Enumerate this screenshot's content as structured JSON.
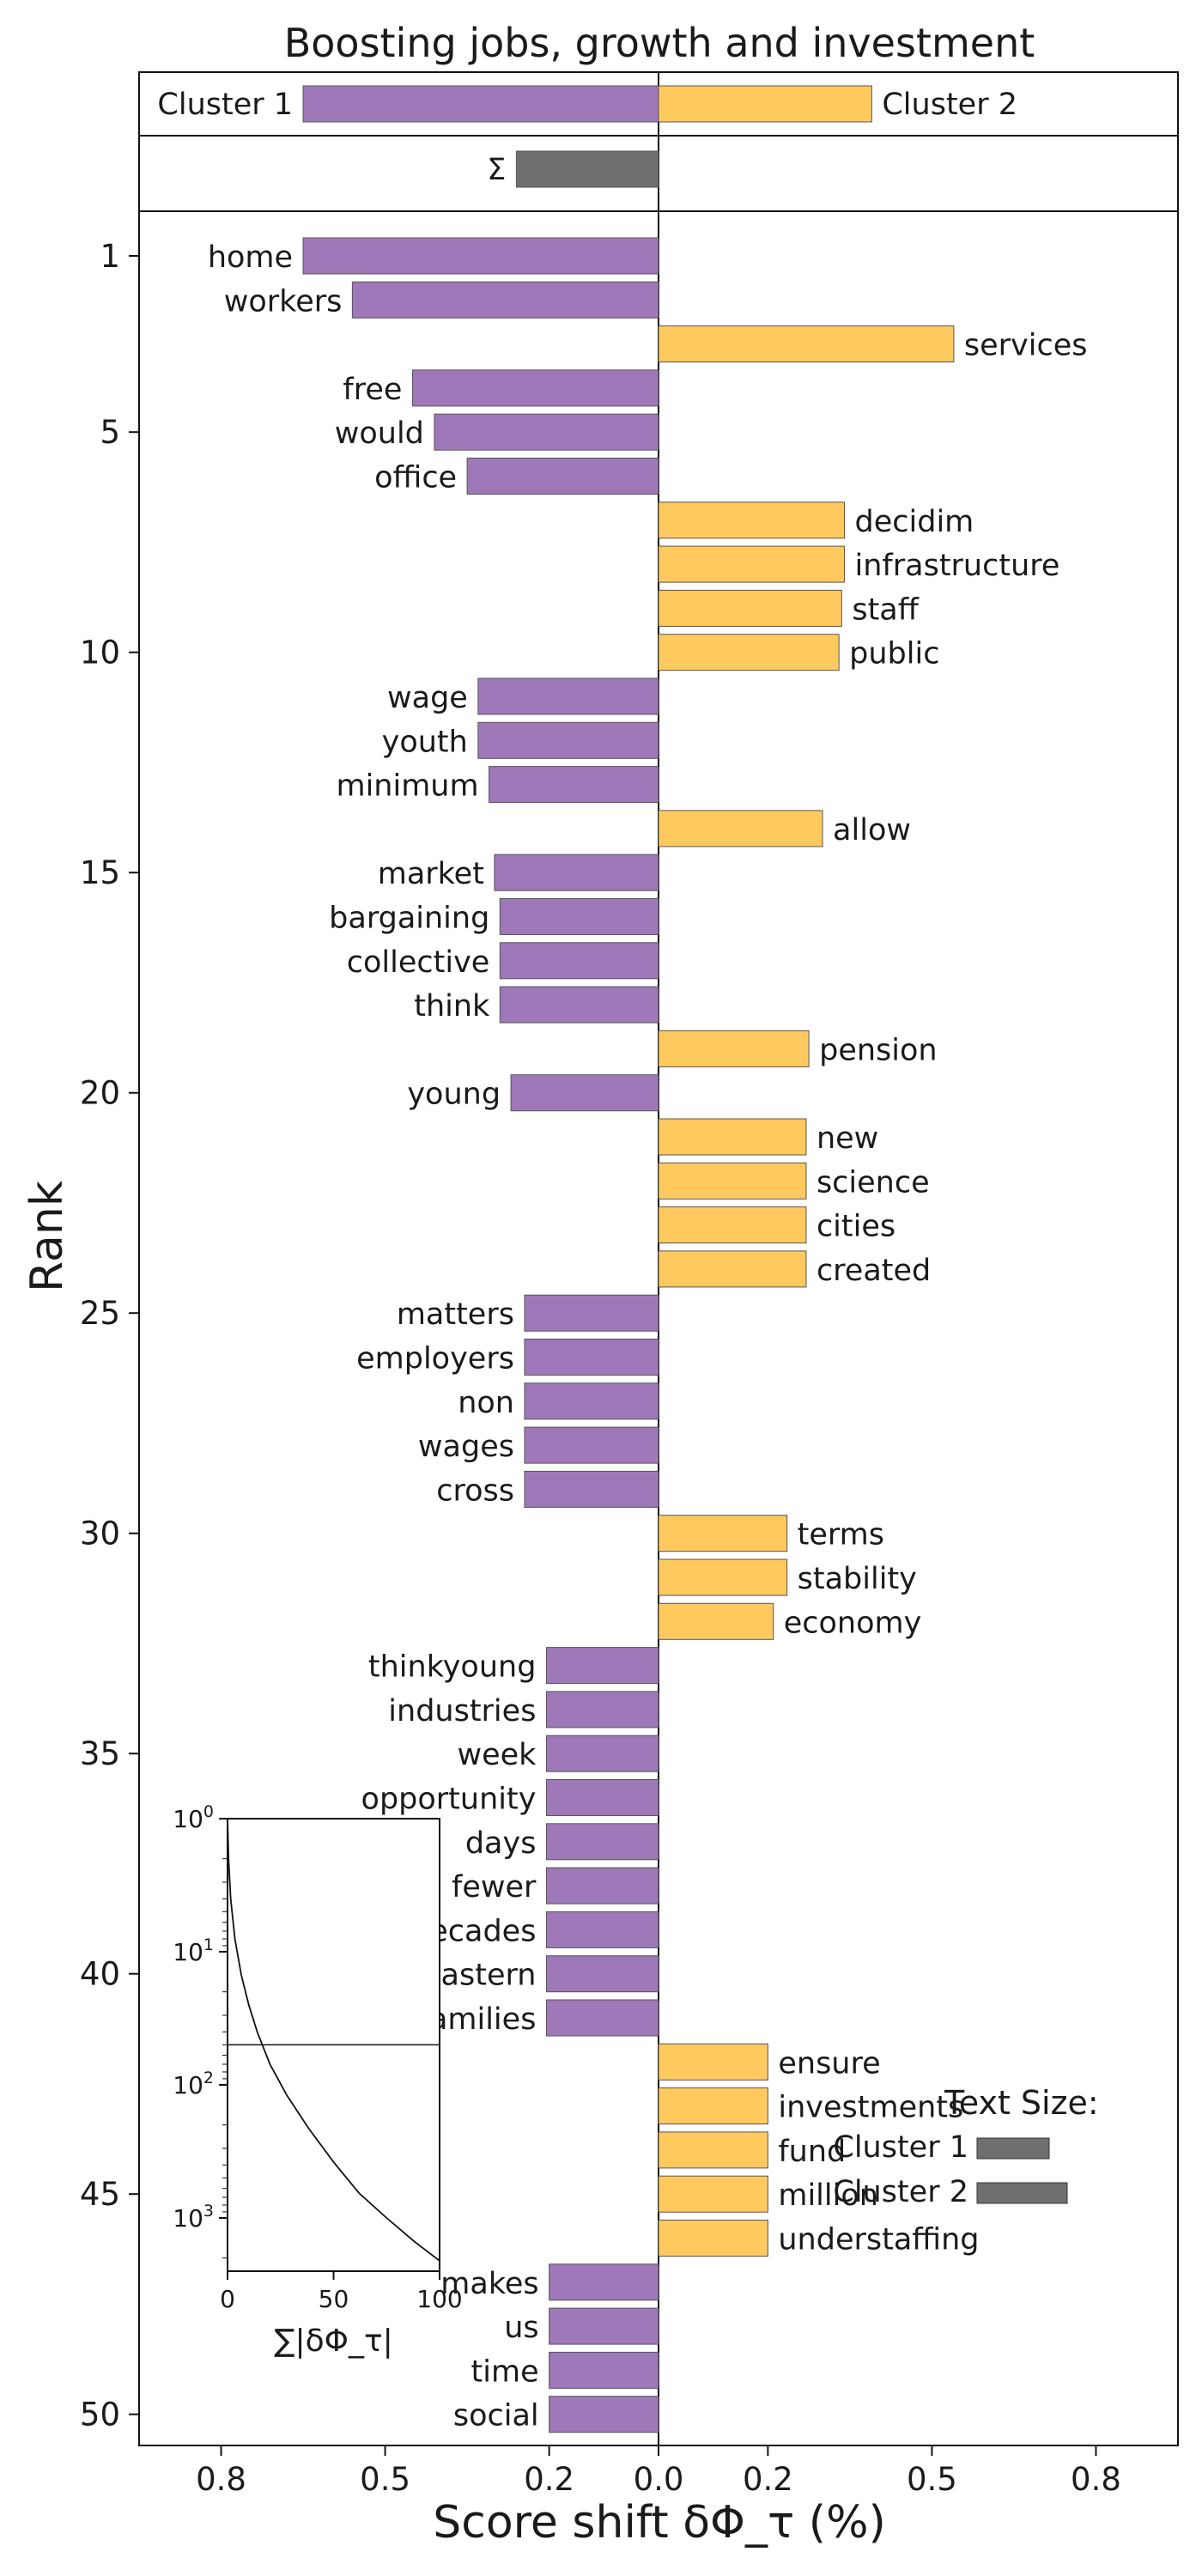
{
  "chart_data": {
    "type": "bar",
    "title": "Boosting jobs, growth and investment",
    "xlabel": "Score shift δΦ_τ (%)",
    "ylabel": "Rank",
    "xlim": [
      -0.95,
      0.95
    ],
    "x_ticks": [
      -0.8,
      -0.5,
      -0.2,
      0.0,
      0.2,
      0.5,
      0.8
    ],
    "x_tick_labels": [
      "0.8",
      "0.5",
      "0.2",
      "0.0",
      "0.2",
      "0.5",
      "0.8"
    ],
    "y_ticks": [
      1,
      5,
      10,
      15,
      20,
      25,
      30,
      35,
      40,
      45,
      50
    ],
    "colors": {
      "cluster1": "#9e78b8",
      "cluster2": "#ffc95e",
      "sum": "#6f6f6f",
      "edge": "#555555"
    },
    "summary": {
      "cluster1_label": "Cluster 1",
      "cluster2_label": "Cluster 2",
      "cluster1_value": -0.65,
      "cluster2_value": 0.39,
      "sigma_label": "Σ",
      "sigma_value": -0.26
    },
    "words": [
      {
        "rank": 1,
        "word": "home",
        "value": -0.65
      },
      {
        "rank": 2,
        "word": "workers",
        "value": -0.56
      },
      {
        "rank": 3,
        "word": "services",
        "value": 0.54
      },
      {
        "rank": 4,
        "word": "free",
        "value": -0.45
      },
      {
        "rank": 5,
        "word": "would",
        "value": -0.41
      },
      {
        "rank": 6,
        "word": "office",
        "value": -0.35
      },
      {
        "rank": 7,
        "word": "decidim",
        "value": 0.34
      },
      {
        "rank": 8,
        "word": "infrastructure",
        "value": 0.34
      },
      {
        "rank": 9,
        "word": "staff",
        "value": 0.335
      },
      {
        "rank": 10,
        "word": "public",
        "value": 0.33
      },
      {
        "rank": 11,
        "word": "wage",
        "value": -0.33
      },
      {
        "rank": 12,
        "word": "youth",
        "value": -0.33
      },
      {
        "rank": 13,
        "word": "minimum",
        "value": -0.31
      },
      {
        "rank": 14,
        "word": "allow",
        "value": 0.3
      },
      {
        "rank": 15,
        "word": "market",
        "value": -0.3
      },
      {
        "rank": 16,
        "word": "bargaining",
        "value": -0.29
      },
      {
        "rank": 17,
        "word": "collective",
        "value": -0.29
      },
      {
        "rank": 18,
        "word": "think",
        "value": -0.29
      },
      {
        "rank": 19,
        "word": "pension",
        "value": 0.275
      },
      {
        "rank": 20,
        "word": "young",
        "value": -0.27
      },
      {
        "rank": 21,
        "word": "new",
        "value": 0.27
      },
      {
        "rank": 22,
        "word": "science",
        "value": 0.27
      },
      {
        "rank": 23,
        "word": "cities",
        "value": 0.27
      },
      {
        "rank": 24,
        "word": "created",
        "value": 0.27
      },
      {
        "rank": 25,
        "word": "matters",
        "value": -0.245
      },
      {
        "rank": 26,
        "word": "employers",
        "value": -0.245
      },
      {
        "rank": 27,
        "word": "non",
        "value": -0.245
      },
      {
        "rank": 28,
        "word": "wages",
        "value": -0.245
      },
      {
        "rank": 29,
        "word": "cross",
        "value": -0.245
      },
      {
        "rank": 30,
        "word": "terms",
        "value": 0.235
      },
      {
        "rank": 31,
        "word": "stability",
        "value": 0.235
      },
      {
        "rank": 32,
        "word": "economy",
        "value": 0.21
      },
      {
        "rank": 33,
        "word": "thinkyoung",
        "value": -0.205
      },
      {
        "rank": 34,
        "word": "industries",
        "value": -0.205
      },
      {
        "rank": 35,
        "word": "week",
        "value": -0.205
      },
      {
        "rank": 36,
        "word": "opportunity",
        "value": -0.205
      },
      {
        "rank": 37,
        "word": "days",
        "value": -0.205
      },
      {
        "rank": 38,
        "word": "fewer",
        "value": -0.205
      },
      {
        "rank": 39,
        "word": "decades",
        "value": -0.205
      },
      {
        "rank": 40,
        "word": "eastern",
        "value": -0.205
      },
      {
        "rank": 41,
        "word": "families",
        "value": -0.205
      },
      {
        "rank": 42,
        "word": "ensure",
        "value": 0.2
      },
      {
        "rank": 43,
        "word": "investments",
        "value": 0.2
      },
      {
        "rank": 44,
        "word": "fund",
        "value": 0.2
      },
      {
        "rank": 45,
        "word": "million",
        "value": 0.2
      },
      {
        "rank": 46,
        "word": "understaffing",
        "value": 0.2
      },
      {
        "rank": 47,
        "word": "makes",
        "value": -0.2
      },
      {
        "rank": 48,
        "word": "us",
        "value": -0.2
      },
      {
        "rank": 49,
        "word": "time",
        "value": -0.2
      },
      {
        "rank": 50,
        "word": "social",
        "value": -0.2
      }
    ],
    "inset": {
      "xlabel": "∑|δΦ_τ|",
      "x_ticks": [
        0,
        50,
        100
      ],
      "y_ticks": [
        {
          "base": "10",
          "exp": "0",
          "value": 1
        },
        {
          "base": "10",
          "exp": "1",
          "value": 10
        },
        {
          "base": "10",
          "exp": "2",
          "value": 100
        },
        {
          "base": "10",
          "exp": "3",
          "value": 1000
        }
      ],
      "hline_rank": 50,
      "curve": [
        {
          "pct": 0.0,
          "rank": 1
        },
        {
          "pct": 0.5,
          "rank": 2
        },
        {
          "pct": 1.5,
          "rank": 4
        },
        {
          "pct": 3.5,
          "rank": 8
        },
        {
          "pct": 6.5,
          "rank": 15
        },
        {
          "pct": 10.0,
          "rank": 25
        },
        {
          "pct": 14.0,
          "rank": 40
        },
        {
          "pct": 20.0,
          "rank": 70
        },
        {
          "pct": 28.0,
          "rank": 120
        },
        {
          "pct": 38.0,
          "rank": 210
        },
        {
          "pct": 50.0,
          "rank": 380
        },
        {
          "pct": 62.0,
          "rank": 650
        },
        {
          "pct": 75.0,
          "rank": 1000
        },
        {
          "pct": 88.0,
          "rank": 1500
        },
        {
          "pct": 100.0,
          "rank": 2100
        }
      ]
    },
    "text_size": {
      "title": "Text Size:",
      "cluster1_label": "Cluster 1",
      "cluster2_label": "Cluster 2",
      "cluster1_fraction": 0.6,
      "cluster2_fraction": 0.75
    }
  }
}
